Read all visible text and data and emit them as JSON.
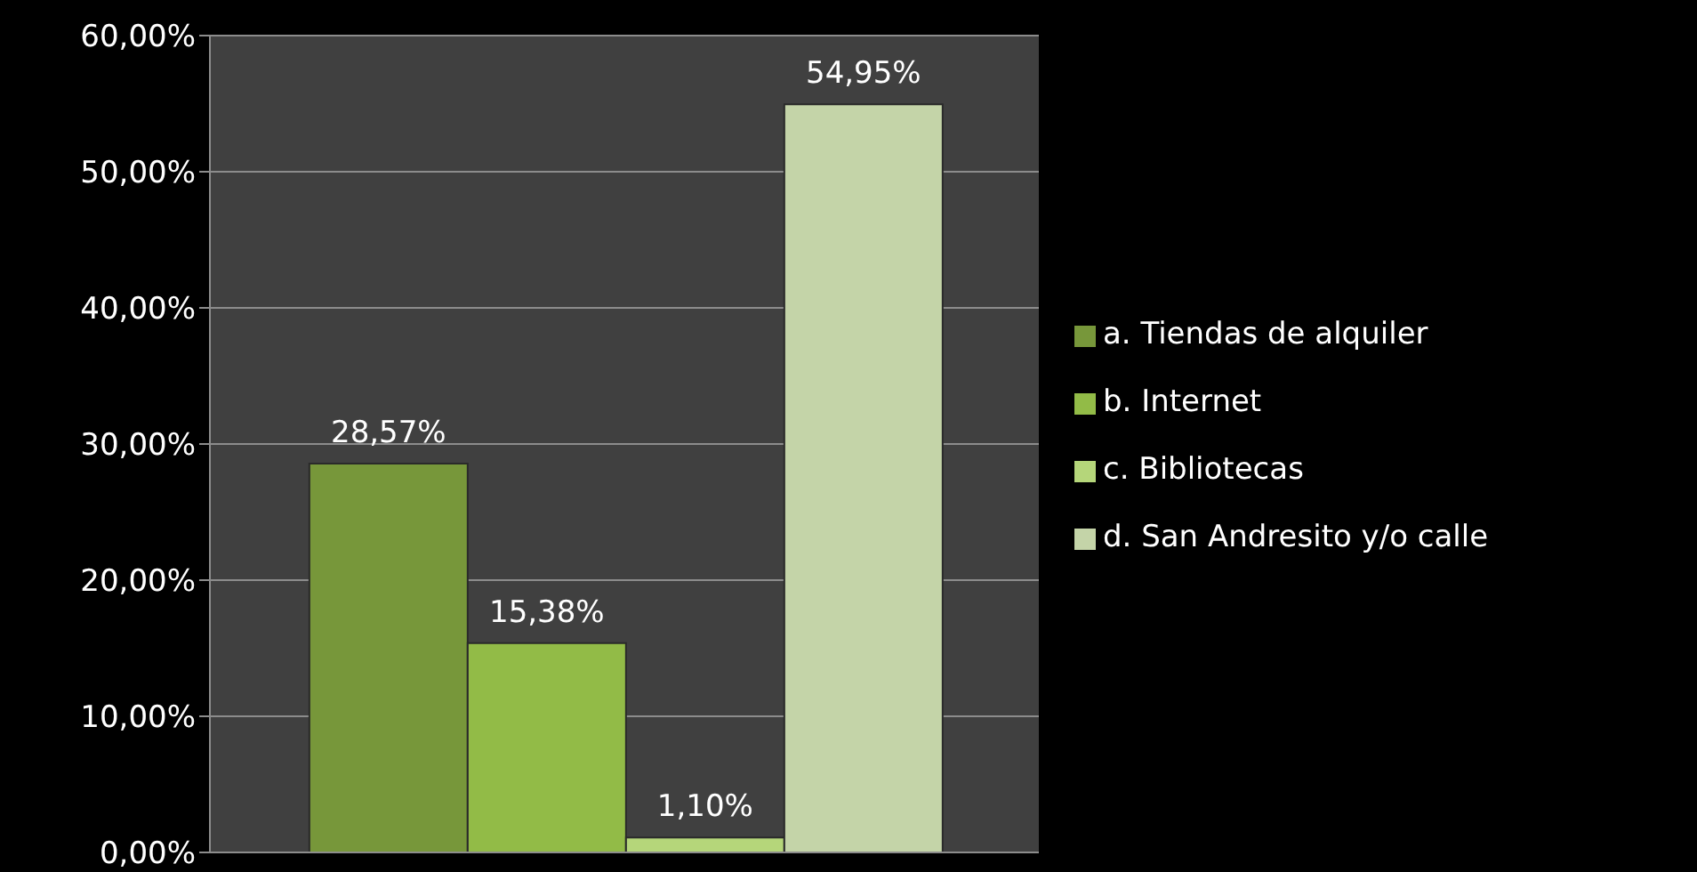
{
  "chart_data": {
    "type": "bar",
    "categories": [
      null
    ],
    "series": [
      {
        "name": "a. Tiendas de alquiler",
        "color": "#77973a",
        "values": [
          28.57
        ],
        "value_labels": [
          "28,57%"
        ]
      },
      {
        "name": "b. Internet",
        "color": "#92bb47",
        "values": [
          15.38
        ],
        "value_labels": [
          "15,38%"
        ]
      },
      {
        "name": "c. Bibliotecas",
        "color": "#b5d67a",
        "values": [
          1.1
        ],
        "value_labels": [
          "1,10%"
        ]
      },
      {
        "name": "d. San Andresito y/o calle",
        "color": "#c4d4a8",
        "values": [
          54.95
        ],
        "value_labels": [
          "54,95%"
        ]
      }
    ],
    "ylim": [
      0,
      60
    ],
    "yticks": [
      {
        "value": 0,
        "label": "0,00%"
      },
      {
        "value": 10,
        "label": "10,00%"
      },
      {
        "value": 20,
        "label": "20,00%"
      },
      {
        "value": 30,
        "label": "30,00%"
      },
      {
        "value": 40,
        "label": "40,00%"
      },
      {
        "value": 50,
        "label": "50,00%"
      },
      {
        "value": 60,
        "label": "60,00%"
      }
    ],
    "grid": "y",
    "legend": "right",
    "tick_labels": "y"
  }
}
